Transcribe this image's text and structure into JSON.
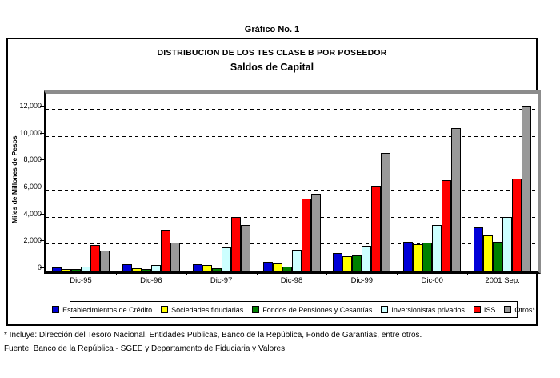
{
  "page": {
    "heading": "Gráfico No. 1",
    "footnote_include": "* Incluye: Dirección del Tesoro Nacional, Entidades Publicas, Banco de la República, Fondo de Garantias, entre otros.",
    "footnote_source": "Fuente: Banco de la República - SGEE y Departamento de Fiduciaria y Valores."
  },
  "chart": {
    "title": "DISTRIBUCION DE LOS TES CLASE B POR POSEEDOR",
    "subtitle": "Saldos de Capital",
    "y_axis_title": "Miles de Millones de Pesos"
  },
  "chart_data": {
    "type": "bar",
    "title": "DISTRIBUCION DE LOS TES CLASE B POR POSEEDOR",
    "subtitle": "Saldos de Capital",
    "ylabel": "Miles de Millones de Pesos",
    "xlabel": "",
    "ylim": [
      0,
      12800
    ],
    "yticks": [
      0,
      2000,
      4000,
      6000,
      8000,
      10000,
      12000
    ],
    "ytick_labels": [
      "0",
      "2,000",
      "4,000",
      "6,000",
      "8,000",
      "10,000",
      "12,000"
    ],
    "grid": "horizontal-dashed",
    "legend_position": "bottom",
    "categories": [
      "Dic-95",
      "Dic-96",
      "Dic-97",
      "Dic-98",
      "Dic-99",
      "Dic-00",
      "2001 Sep."
    ],
    "series": [
      {
        "name": "Establecimientos de Crédito",
        "color": "#0000D8",
        "values": [
          150,
          400,
          400,
          600,
          1250,
          2100,
          3150
        ]
      },
      {
        "name": "Sociedades fiduciarias",
        "color": "#FFFF00",
        "values": [
          60,
          120,
          380,
          450,
          1000,
          1900,
          2550
        ]
      },
      {
        "name": "Fondos de Pensiones y Cesantías",
        "color": "#008000",
        "values": [
          20,
          40,
          90,
          250,
          1050,
          2000,
          2100
        ]
      },
      {
        "name": "Inversionistas privados",
        "color": "#CCFFFF",
        "values": [
          250,
          350,
          1650,
          1500,
          1800,
          3350,
          3900
        ]
      },
      {
        "name": "ISS",
        "color": "#FF0000",
        "values": [
          1850,
          2950,
          3900,
          5300,
          6250,
          6650,
          6750
        ]
      },
      {
        "name": "Otros*",
        "color": "#999999",
        "values": [
          1450,
          2000,
          3300,
          5650,
          8700,
          10500,
          12150
        ]
      }
    ]
  }
}
